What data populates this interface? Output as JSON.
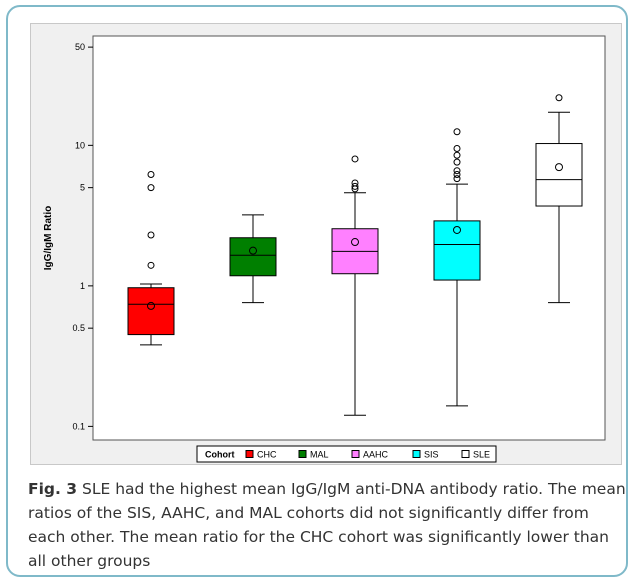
{
  "chart_data": {
    "type": "box",
    "ylabel": "IgG/IgM Ratio",
    "yscale": "log",
    "ylim": [
      0.08,
      60
    ],
    "yticks": [
      0.1,
      0.5,
      1,
      5,
      10,
      50
    ],
    "ytick_labels": [
      "0.1",
      "0.5",
      "1",
      "5",
      "10",
      "50"
    ],
    "legend": {
      "title": "Cohort",
      "placement": "bottom",
      "entries": [
        "CHC",
        "MAL",
        "AAHC",
        "SIS",
        "SLE"
      ]
    },
    "series": [
      {
        "name": "CHC",
        "color": "#ff0000",
        "q1": 0.45,
        "median": 0.74,
        "q3": 0.97,
        "whisker_low": 0.38,
        "whisker_high": 1.03,
        "mean": 0.72,
        "outliers": [
          1.4,
          2.3,
          5.0,
          6.2
        ]
      },
      {
        "name": "MAL",
        "color": "#007f00",
        "q1": 1.18,
        "median": 1.65,
        "q3": 2.2,
        "whisker_low": 0.76,
        "whisker_high": 3.2,
        "mean": 1.78,
        "outliers": []
      },
      {
        "name": "AAHC",
        "color": "#ff80ff",
        "q1": 1.22,
        "median": 1.76,
        "q3": 2.55,
        "whisker_low": 0.12,
        "whisker_high": 4.6,
        "mean": 2.05,
        "outliers": [
          4.9,
          5.1,
          5.4,
          8.0
        ]
      },
      {
        "name": "SIS",
        "color": "#00ffff",
        "q1": 1.1,
        "median": 1.97,
        "q3": 2.9,
        "whisker_low": 0.14,
        "whisker_high": 5.3,
        "mean": 2.5,
        "outliers": [
          5.8,
          6.2,
          6.6,
          7.6,
          8.5,
          9.5,
          12.5
        ]
      },
      {
        "name": "SLE",
        "color": "#ffffff",
        "q1": 3.7,
        "median": 5.7,
        "q3": 10.3,
        "whisker_low": 0.76,
        "whisker_high": 17.2,
        "mean": 7.0,
        "outliers": [
          21.8
        ]
      }
    ]
  },
  "caption": {
    "label": "Fig. 3",
    "text": " SLE had the highest mean IgG/IgM anti-DNA antibody ratio. The mean ratios of the SIS, AAHC, and MAL cohorts did not significantly differ from each other. The mean ratio for the CHC cohort was significantly lower than all other groups"
  }
}
